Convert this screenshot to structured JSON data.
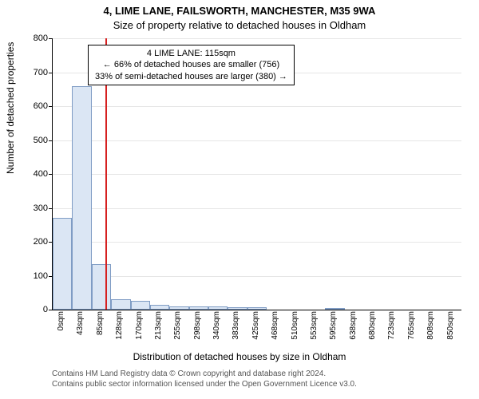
{
  "title_line1": "4, LIME LANE, FAILSWORTH, MANCHESTER, M35 9WA",
  "title_line2": "Size of property relative to detached houses in Oldham",
  "ylabel": "Number of detached properties",
  "xlabel": "Distribution of detached houses by size in Oldham",
  "chart": {
    "type": "histogram",
    "ylim": [
      0,
      800
    ],
    "ytick_step": 100,
    "xtick_start": 0,
    "xtick_step": 42.5,
    "xtick_count": 21,
    "xtick_unit": "sqm",
    "background_color": "#ffffff",
    "grid_color": "#e6e6e6",
    "axis_color": "#000000",
    "bar_fill": "#dbe6f4",
    "bar_border": "#7f9cc4",
    "marker_color": "#d62020",
    "marker_value": 115,
    "bars": [
      {
        "x": 42.5,
        "count": 270
      },
      {
        "x": 85,
        "count": 660
      },
      {
        "x": 127.5,
        "count": 135
      },
      {
        "x": 170,
        "count": 30
      },
      {
        "x": 212.5,
        "count": 25
      },
      {
        "x": 255,
        "count": 15
      },
      {
        "x": 297.5,
        "count": 10
      },
      {
        "x": 340,
        "count": 10
      },
      {
        "x": 382.5,
        "count": 10
      },
      {
        "x": 425,
        "count": 8
      },
      {
        "x": 467.5,
        "count": 6
      },
      {
        "x": 510,
        "count": 0
      },
      {
        "x": 552.5,
        "count": 0
      },
      {
        "x": 595,
        "count": 0
      },
      {
        "x": 637.5,
        "count": 4
      },
      {
        "x": 680,
        "count": 0
      },
      {
        "x": 722.5,
        "count": 0
      },
      {
        "x": 765,
        "count": 0
      },
      {
        "x": 807.5,
        "count": 0
      },
      {
        "x": 850,
        "count": 0
      }
    ]
  },
  "annotation": {
    "line1": "4 LIME LANE: 115sqm",
    "line2": "← 66% of detached houses are smaller (756)",
    "line3": "33% of semi-detached houses are larger (380) →"
  },
  "footer": {
    "line1": "Contains HM Land Registry data © Crown copyright and database right 2024.",
    "line2": "Contains public sector information licensed under the Open Government Licence v3.0."
  }
}
